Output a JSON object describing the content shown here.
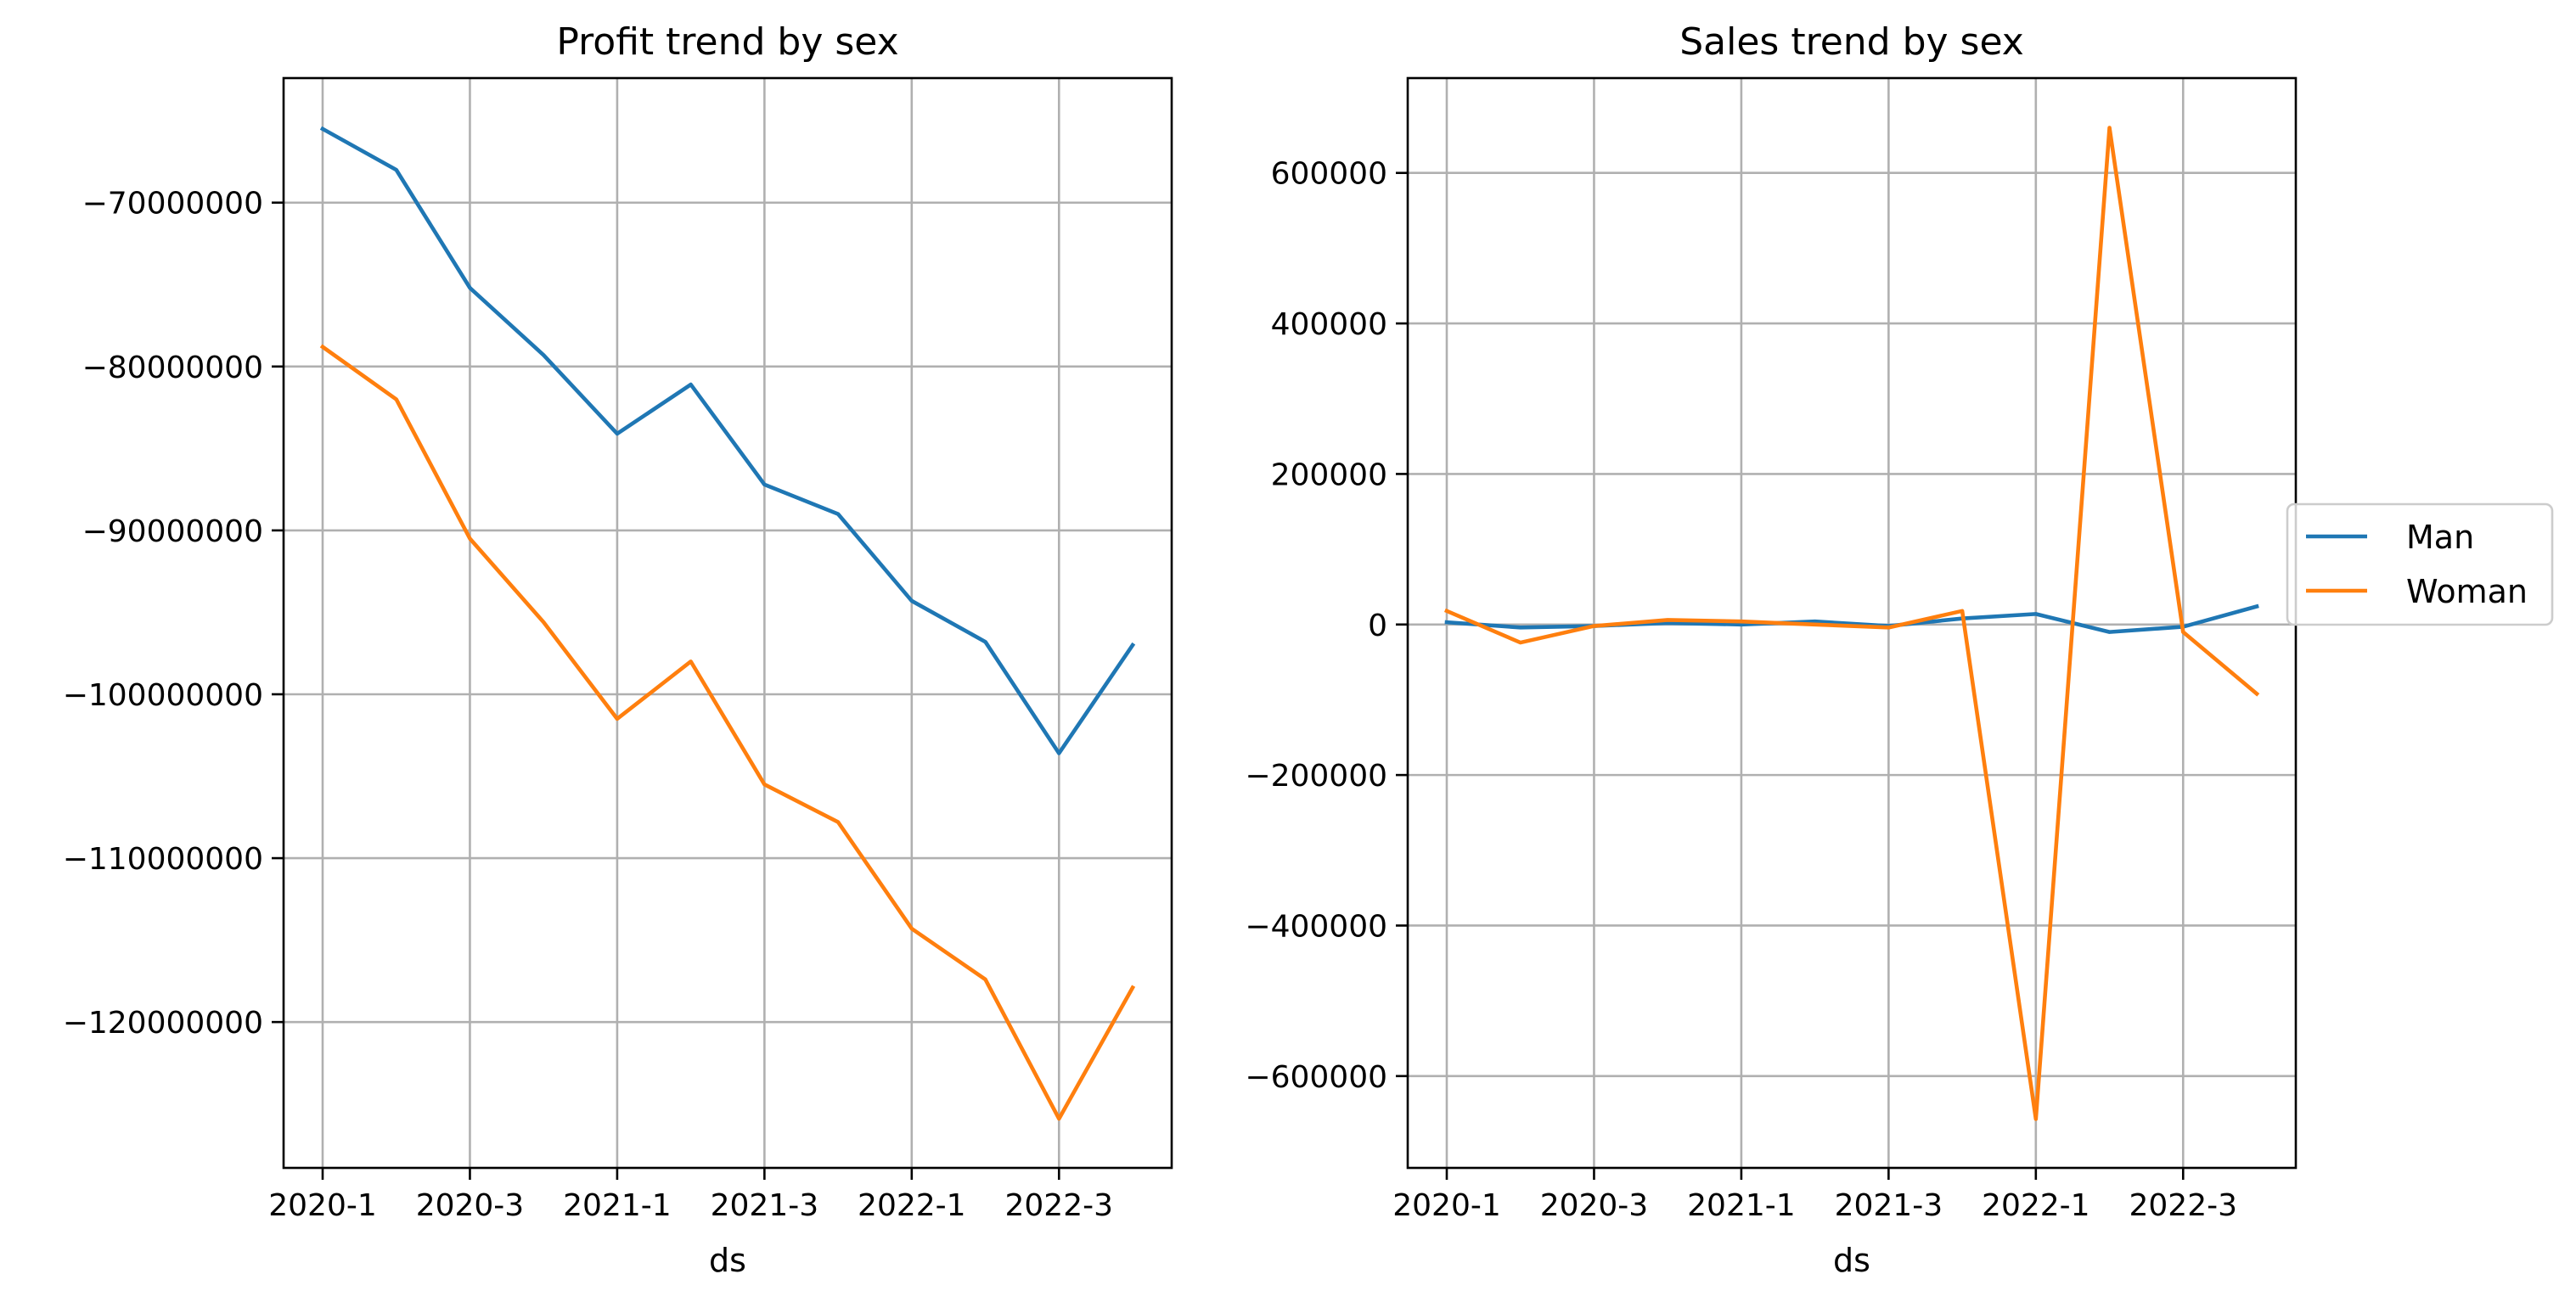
{
  "chart_data": [
    {
      "type": "line",
      "title": "Profit trend by sex",
      "xlabel": "ds",
      "ylabel": "",
      "x": [
        "2020-1",
        "2020-2",
        "2020-3",
        "2020-4",
        "2021-1",
        "2021-2",
        "2021-3",
        "2021-4",
        "2022-1",
        "2022-2",
        "2022-3",
        "2022-4"
      ],
      "xticks": [
        "2020-1",
        "2020-3",
        "2021-1",
        "2021-3",
        "2022-1",
        "2022-3"
      ],
      "yticks": [
        -120000000,
        -110000000,
        -100000000,
        -90000000,
        -80000000,
        -70000000
      ],
      "ytick_labels": [
        "−120000000",
        "−110000000",
        "−100000000",
        "−90000000",
        "−80000000",
        "−70000000"
      ],
      "ylim": [
        -128900000,
        -62400000
      ],
      "grid": true,
      "series": [
        {
          "name": "Man",
          "color": "#1f77b4",
          "values": [
            -65500000,
            -68000000,
            -75200000,
            -79300000,
            -84100000,
            -81100000,
            -87200000,
            -89000000,
            -94300000,
            -96800000,
            -103600000,
            -97000000
          ]
        },
        {
          "name": "Woman",
          "color": "#ff7f0e",
          "values": [
            -78800000,
            -82000000,
            -90500000,
            -95600000,
            -101500000,
            -98000000,
            -105500000,
            -107800000,
            -114300000,
            -117400000,
            -125900000,
            -117900000
          ]
        }
      ]
    },
    {
      "type": "line",
      "title": "Sales trend by sex",
      "xlabel": "ds",
      "ylabel": "",
      "x": [
        "2020-1",
        "2020-2",
        "2020-3",
        "2020-4",
        "2021-1",
        "2021-2",
        "2021-3",
        "2021-4",
        "2022-1",
        "2022-2",
        "2022-3",
        "2022-4"
      ],
      "xticks": [
        "2020-1",
        "2020-3",
        "2021-1",
        "2021-3",
        "2022-1",
        "2022-3"
      ],
      "yticks": [
        -600000,
        -400000,
        -200000,
        0,
        200000,
        400000,
        600000
      ],
      "ytick_labels": [
        "−600000",
        "−400000",
        "−200000",
        "0",
        "200000",
        "400000",
        "600000"
      ],
      "ylim": [
        -722000,
        726000
      ],
      "grid": true,
      "legend": "center-right",
      "series": [
        {
          "name": "Man",
          "color": "#1f77b4",
          "values": [
            3000,
            -4000,
            -2000,
            2000,
            0,
            4000,
            -2000,
            8000,
            14000,
            -10000,
            -3000,
            24000
          ]
        },
        {
          "name": "Woman",
          "color": "#ff7f0e",
          "values": [
            18000,
            -24000,
            -2000,
            6000,
            4000,
            0,
            -4000,
            18000,
            -657000,
            660000,
            -10000,
            -92000
          ]
        }
      ]
    }
  ]
}
